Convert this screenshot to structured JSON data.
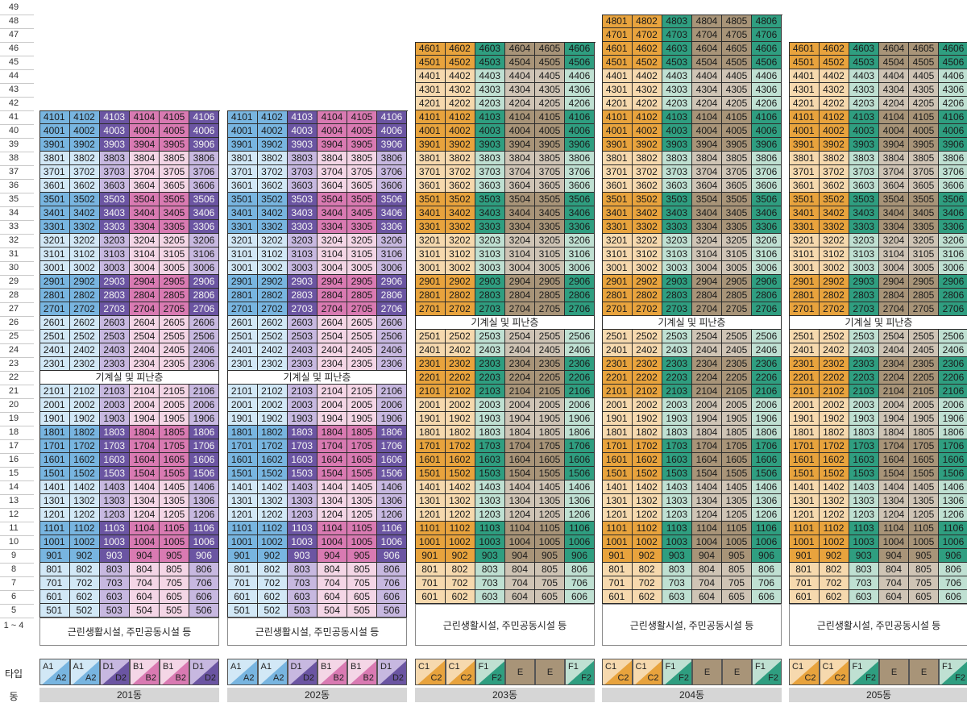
{
  "floors": {
    "top": 49,
    "base_label": "1 ~ 4"
  },
  "row_labels": {
    "type": "타입",
    "dong": "동"
  },
  "buildings": [
    {
      "name": "201동",
      "top_floor": 41,
      "lowest_floor": 5,
      "mech_floor": 22,
      "mech_label": "기계실 및 피난층",
      "base_label": "근린생활시설, 주민공동시설 등",
      "types": [
        {
          "a": "A1",
          "b": "A2",
          "c1": "#78b5e0",
          "c2": "#d2e8f6"
        },
        {
          "a": "A1",
          "b": "A2",
          "c1": "#78b5e0",
          "c2": "#d2e8f6"
        },
        {
          "a": "D1",
          "b": "D2",
          "c1": "#6b55a2",
          "c2": "#c7b8e0"
        },
        {
          "a": "B1",
          "b": "B2",
          "c1": "#d97ab2",
          "c2": "#f4d6e6"
        },
        {
          "a": "B1",
          "b": "B2",
          "c1": "#d97ab2",
          "c2": "#f4d6e6"
        },
        {
          "a": "D1",
          "b": "D2",
          "c1": "#6b55a2",
          "c2": "#c7b8e0"
        }
      ]
    },
    {
      "name": "202동",
      "top_floor": 41,
      "lowest_floor": 5,
      "mech_floor": 22,
      "mech_label": "기계실 및 피난층",
      "base_label": "근린생활시설, 주민공동시설 등",
      "types": [
        {
          "a": "A1",
          "b": "A2",
          "c1": "#78b5e0",
          "c2": "#d2e8f6"
        },
        {
          "a": "A1",
          "b": "A2",
          "c1": "#78b5e0",
          "c2": "#d2e8f6"
        },
        {
          "a": "D1",
          "b": "D2",
          "c1": "#6b55a2",
          "c2": "#c7b8e0"
        },
        {
          "a": "B1",
          "b": "B2",
          "c1": "#d97ab2",
          "c2": "#f4d6e6"
        },
        {
          "a": "B1",
          "b": "B2",
          "c1": "#d97ab2",
          "c2": "#f4d6e6"
        },
        {
          "a": "D1",
          "b": "D2",
          "c1": "#6b55a2",
          "c2": "#c7b8e0"
        }
      ]
    },
    {
      "name": "203동",
      "top_floor": 46,
      "lowest_floor": 6,
      "mech_floor": 26,
      "mech_label": "기계실 및 피난층",
      "base_label": "근린생활시설, 주민공동시설 등",
      "types": [
        {
          "a": "C1",
          "b": "C2",
          "c1": "#e8a33d",
          "c2": "#f6d9ae"
        },
        {
          "a": "C1",
          "b": "C2",
          "c1": "#e8a33d",
          "c2": "#f6d9ae"
        },
        {
          "a": "F1",
          "b": "F2",
          "c1": "#2f9e80",
          "c2": "#bfe0d2"
        },
        {
          "a": "E",
          "b": "",
          "c1": "#a89478",
          "c2": "#a89478"
        },
        {
          "a": "E",
          "b": "",
          "c1": "#a89478",
          "c2": "#a89478"
        },
        {
          "a": "F1",
          "b": "F2",
          "c1": "#2f9e80",
          "c2": "#bfe0d2"
        }
      ]
    },
    {
      "name": "204동",
      "top_floor": 48,
      "lowest_floor": 6,
      "mech_floor": 26,
      "mech_label": "기계실 및 피난층",
      "base_label": "근린생활시설, 주민공동시설 등",
      "types": [
        {
          "a": "C1",
          "b": "C2",
          "c1": "#e8a33d",
          "c2": "#f6d9ae"
        },
        {
          "a": "C1",
          "b": "C2",
          "c1": "#e8a33d",
          "c2": "#f6d9ae"
        },
        {
          "a": "F1",
          "b": "F2",
          "c1": "#2f9e80",
          "c2": "#bfe0d2"
        },
        {
          "a": "E",
          "b": "",
          "c1": "#a89478",
          "c2": "#a89478"
        },
        {
          "a": "E",
          "b": "",
          "c1": "#a89478",
          "c2": "#a89478"
        },
        {
          "a": "F1",
          "b": "F2",
          "c1": "#2f9e80",
          "c2": "#bfe0d2"
        }
      ]
    },
    {
      "name": "205동",
      "top_floor": 46,
      "lowest_floor": 6,
      "mech_floor": 26,
      "mech_label": "기계실 및 피난층",
      "base_label": "근린생활시설, 주민공동시설 등",
      "types": [
        {
          "a": "C1",
          "b": "C2",
          "c1": "#e8a33d",
          "c2": "#f6d9ae"
        },
        {
          "a": "C1",
          "b": "C2",
          "c1": "#e8a33d",
          "c2": "#f6d9ae"
        },
        {
          "a": "F1",
          "b": "F2",
          "c1": "#2f9e80",
          "c2": "#bfe0d2"
        },
        {
          "a": "E",
          "b": "",
          "c1": "#a89478",
          "c2": "#a89478"
        },
        {
          "a": "E",
          "b": "",
          "c1": "#a89478",
          "c2": "#a89478"
        },
        {
          "a": "F1",
          "b": "F2",
          "c1": "#2f9e80",
          "c2": "#bfe0d2"
        }
      ]
    }
  ],
  "palette": {
    "A1": "#78b5e0",
    "A2": "#d2e8f6",
    "B1": "#d97ab2",
    "B2": "#f4d6e6",
    "D1": "#6b55a2",
    "D2": "#c7b8e0",
    "C1": "#e8a33d",
    "C2": "#f6d9ae",
    "F1": "#2f9e80",
    "F2": "#bfe0d2",
    "E": "#a89478"
  },
  "bands_20x": [
    {
      "from": 39,
      "to": 41,
      "shade": 1
    },
    {
      "from": 36,
      "to": 38,
      "shade": 2
    },
    {
      "from": 33,
      "to": 35,
      "shade": 1
    },
    {
      "from": 30,
      "to": 32,
      "shade": 2
    },
    {
      "from": 27,
      "to": 29,
      "shade": 1
    },
    {
      "from": 23,
      "to": 26,
      "shade": 2
    },
    {
      "from": 19,
      "to": 21,
      "shade": 2
    },
    {
      "from": 15,
      "to": 18,
      "shade": 1
    },
    {
      "from": 12,
      "to": 14,
      "shade": 2
    },
    {
      "from": 9,
      "to": 11,
      "shade": 1
    },
    {
      "from": 5,
      "to": 8,
      "shade": 2
    }
  ],
  "bands_20y": [
    {
      "from": 47,
      "to": 48,
      "shade": 1
    },
    {
      "from": 45,
      "to": 46,
      "shade": 1
    },
    {
      "from": 42,
      "to": 44,
      "shade": 2
    },
    {
      "from": 39,
      "to": 41,
      "shade": 1
    },
    {
      "from": 36,
      "to": 38,
      "shade": 2
    },
    {
      "from": 33,
      "to": 35,
      "shade": 1
    },
    {
      "from": 30,
      "to": 32,
      "shade": 2
    },
    {
      "from": 27,
      "to": 29,
      "shade": 1
    },
    {
      "from": 24,
      "to": 25,
      "shade": 2
    },
    {
      "from": 21,
      "to": 23,
      "shade": 1
    },
    {
      "from": 18,
      "to": 20,
      "shade": 2
    },
    {
      "from": 15,
      "to": 17,
      "shade": 1
    },
    {
      "from": 12,
      "to": 14,
      "shade": 2
    },
    {
      "from": 9,
      "to": 11,
      "shade": 1
    },
    {
      "from": 6,
      "to": 8,
      "shade": 2
    }
  ]
}
